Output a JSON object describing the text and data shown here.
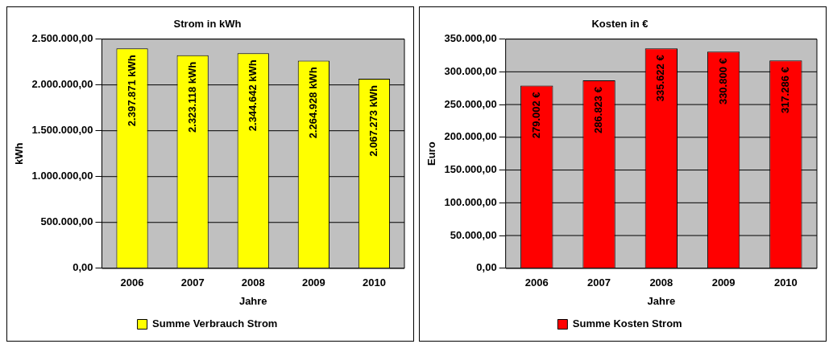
{
  "chart_data": [
    {
      "type": "bar",
      "title": "Strom in kWh",
      "xlabel": "Jahre",
      "ylabel": "kWh",
      "categories": [
        "2006",
        "2007",
        "2008",
        "2009",
        "2010"
      ],
      "series": [
        {
          "name": "Summe Verbrauch Strom",
          "color": "#ffff00",
          "values": [
            2397871,
            2323118,
            2344642,
            2264928,
            2067273
          ],
          "value_labels": [
            "2.397.871 kWh",
            "2.323.118 kWh",
            "2.344.642 kWh",
            "2.264.928 kWh",
            "2.067.273 kWh"
          ]
        }
      ],
      "ylim": [
        0,
        2500000
      ],
      "yticks": [
        {
          "value": 0,
          "label": "0,00"
        },
        {
          "value": 500000,
          "label": "500.000,00"
        },
        {
          "value": 1000000,
          "label": "1.000.000,00"
        },
        {
          "value": 1500000,
          "label": "1.500.000,00"
        },
        {
          "value": 2000000,
          "label": "2.000.000,00"
        },
        {
          "value": 2500000,
          "label": "2.500.000,00"
        }
      ],
      "grid": "y",
      "legend": "bottom"
    },
    {
      "type": "bar",
      "title": "Kosten in €",
      "xlabel": "Jahre",
      "ylabel": "Euro",
      "categories": [
        "2006",
        "2007",
        "2008",
        "2009",
        "2010"
      ],
      "series": [
        {
          "name": "Summe Kosten Strom",
          "color": "#ff0000",
          "values": [
            279002,
            286823,
            335622,
            330800,
            317286
          ],
          "value_labels": [
            "279.002 €",
            "286.823 €",
            "335.622 €",
            "330.800 €",
            "317.286 €"
          ]
        }
      ],
      "ylim": [
        0,
        350000
      ],
      "yticks": [
        {
          "value": 0,
          "label": "0,00"
        },
        {
          "value": 50000,
          "label": "50.000,00"
        },
        {
          "value": 100000,
          "label": "100.000,00"
        },
        {
          "value": 150000,
          "label": "150.000,00"
        },
        {
          "value": 200000,
          "label": "200.000,00"
        },
        {
          "value": 250000,
          "label": "250.000,00"
        },
        {
          "value": 300000,
          "label": "300.000,00"
        },
        {
          "value": 350000,
          "label": "350.000,00"
        }
      ],
      "grid": "y",
      "legend": "bottom"
    }
  ]
}
